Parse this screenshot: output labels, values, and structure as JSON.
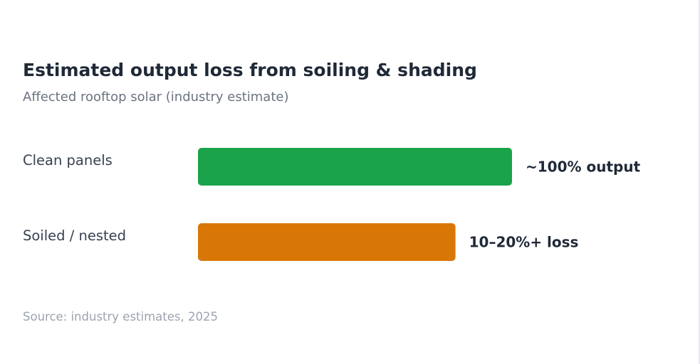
{
  "chart_data": {
    "type": "bar",
    "orientation": "horizontal",
    "title": "Estimated output loss from soiling & shading",
    "subtitle": "Affected rooftop solar (industry estimate)",
    "categories": [
      "Clean panels",
      "Soiled / nested"
    ],
    "values": [
      100,
      82
    ],
    "data_labels": [
      "~100% output",
      "10–20%+ loss"
    ],
    "colors": [
      "#1aa34a",
      "#d97706"
    ],
    "xlim": [
      0,
      100
    ],
    "grid": false,
    "source": "Source: industry estimates, 2025"
  }
}
